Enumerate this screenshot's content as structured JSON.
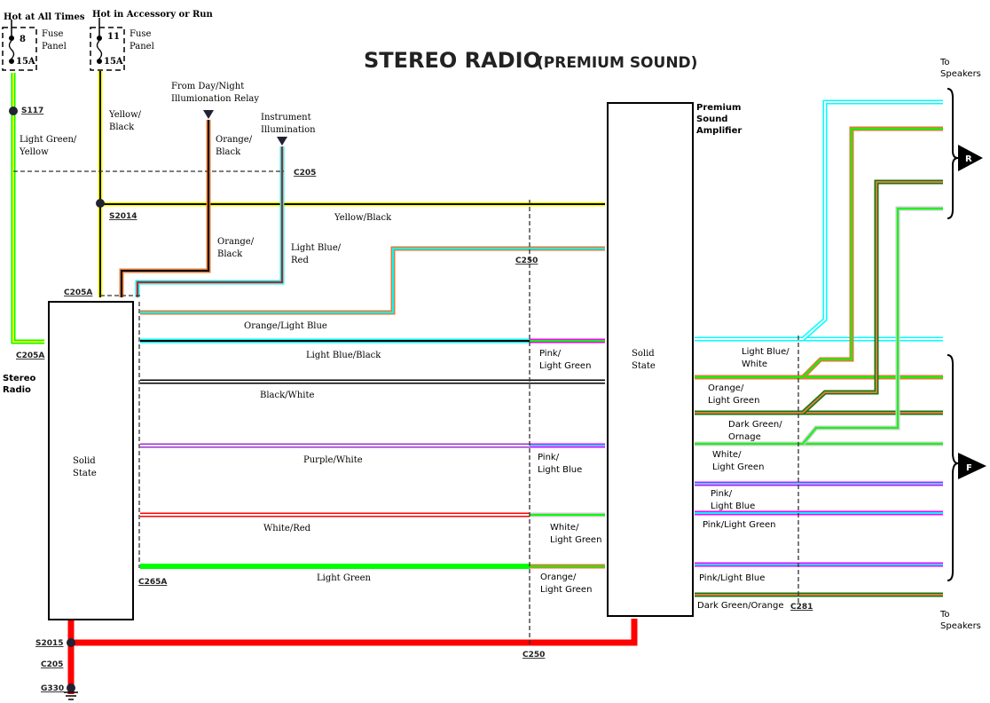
{
  "title": {
    "main": "STEREO RADIO",
    "sub": "(PREMIUM SOUND)"
  },
  "power": {
    "hot_all_times": "Hot at All Times",
    "hot_accessory": "Hot in Accessory or Run",
    "fuse1": {
      "number": "8",
      "rating": "15A",
      "label1": "Fuse",
      "label2": "Panel"
    },
    "fuse2": {
      "number": "11",
      "rating": "15A",
      "label1": "Fuse",
      "label2": "Panel"
    },
    "day_night_1": "From Day/Night",
    "day_night_2": "Illumionation Relay",
    "instr_1": "Instrument",
    "instr_2": "Illumination"
  },
  "connectors": {
    "s117": "S117",
    "c205_top": "C205",
    "s2014": "S2014",
    "c250_top": "C250",
    "c205a_top": "C205A",
    "c205a_left": "C205A",
    "c265a": "C265A",
    "s2015": "S2015",
    "c205_bottom": "C205",
    "g330": "G330",
    "c250_bottom": "C250",
    "c281": "C281"
  },
  "components": {
    "radio_1": "Stereo",
    "radio_2": "Radio",
    "radio_inner_1": "Solid",
    "radio_inner_2": "State",
    "amp_1": "Premium",
    "amp_2": "Sound",
    "amp_3": "Amplifier",
    "amp_inner_1": "Solid",
    "amp_inner_2": "State",
    "speakers_top_1": "To",
    "speakers_top_2": "Speakers",
    "speakers_bottom_1": "To",
    "speakers_bottom_2": "Speakers",
    "rear_badge": "R",
    "front_badge": "F"
  },
  "wires": {
    "lg_y_1": "Light Green/",
    "lg_y_2": "Yellow",
    "y_b_1": "Yellow/",
    "y_b_2": "Black",
    "o_b_1": "Orange/",
    "o_b_2": "Black",
    "o_b2_1": "Orange/",
    "o_b2_2": "Black",
    "lb_r_1": "Light Blue/",
    "lb_r_2": "Red",
    "y_b_h": "Yellow/Black",
    "o_lb": "Orange/Light Blue",
    "lb_b": "Light Blue/Black",
    "b_w": "Black/White",
    "p_w": "Purple/White",
    "w_r": "White/Red",
    "lg": "Light Green",
    "amp_in": [
      [
        "Pink/",
        "Light Green"
      ],
      [
        "Pink/",
        "Light Blue"
      ],
      [
        "White/",
        "Light Green"
      ],
      [
        "Orange/",
        "Light Green"
      ]
    ],
    "amp_out": {
      "lb_w": [
        "Light Blue/",
        "White"
      ],
      "o_lg": [
        "Orange/",
        "Light Green"
      ],
      "dg_o": [
        "Dark Green/",
        "Ornage"
      ],
      "w_lg": [
        "White/",
        "Light Green"
      ],
      "p_lb": [
        "Pink/",
        "Light Blue"
      ],
      "p_lg": "Pink/Light Green",
      "p_lb2": "Pink/Light Blue",
      "dg_o2": "Dark Green/Orange"
    }
  },
  "colors": {
    "light_green": "#00ff00",
    "yellow": "#ffff00",
    "black": "#000000",
    "orange": "#e07a3a",
    "light_blue": "#00ffff",
    "red": "#ff0000",
    "pink": "#ff00ff",
    "purple": "#9933cc",
    "white": "#ffffff",
    "dark_green": "#117711"
  }
}
